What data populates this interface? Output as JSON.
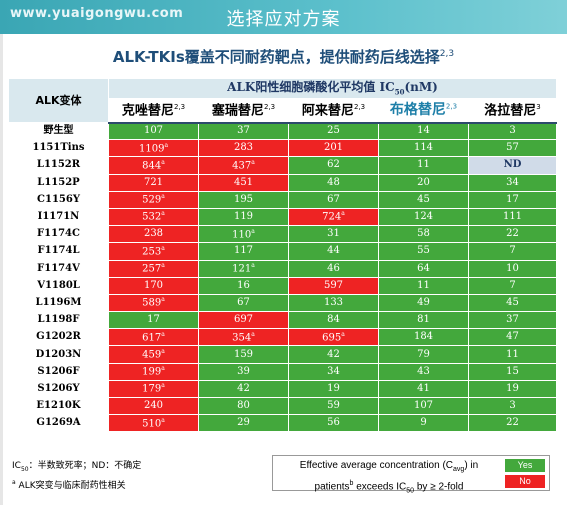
{
  "watermark": "www.yuaigongwu.com",
  "slide_title": "选择应对方案",
  "subtitle": {
    "text": "ALK-TKIs覆盖不同耐药靶点，提供耐药后线选择",
    "refs": "2,3"
  },
  "table": {
    "ic50_header": {
      "prefix": "ALK阳性细胞磷酸化平均值 IC",
      "sub": "50",
      "suffix": "(nM)"
    },
    "variant_header": "ALK变体",
    "drugs": [
      {
        "name": "克唑替尼",
        "refs": "2,3"
      },
      {
        "name": "塞瑞替尼",
        "refs": "2,3"
      },
      {
        "name": "阿来替尼",
        "refs": "2,3"
      },
      {
        "name": "布格替尼",
        "refs": "2,3"
      },
      {
        "name": "洛拉替尼",
        "refs": "3"
      }
    ],
    "rows": [
      {
        "variant": "野生型",
        "cells": [
          {
            "v": "107",
            "c": "green",
            "m": ""
          },
          {
            "v": "37",
            "c": "green",
            "m": ""
          },
          {
            "v": "25",
            "c": "green",
            "m": ""
          },
          {
            "v": "14",
            "c": "green",
            "m": ""
          },
          {
            "v": "3",
            "c": "green",
            "m": ""
          }
        ]
      },
      {
        "variant": "1151Tins",
        "cells": [
          {
            "v": "1109",
            "c": "red",
            "m": "a"
          },
          {
            "v": "283",
            "c": "red",
            "m": ""
          },
          {
            "v": "201",
            "c": "red",
            "m": ""
          },
          {
            "v": "114",
            "c": "green",
            "m": ""
          },
          {
            "v": "57",
            "c": "green",
            "m": ""
          }
        ]
      },
      {
        "variant": "L1152R",
        "cells": [
          {
            "v": "844",
            "c": "red",
            "m": "a"
          },
          {
            "v": "437",
            "c": "red",
            "m": "a"
          },
          {
            "v": "62",
            "c": "green",
            "m": ""
          },
          {
            "v": "11",
            "c": "green",
            "m": ""
          },
          {
            "v": "ND",
            "c": "nd",
            "m": ""
          }
        ]
      },
      {
        "variant": "L1152P",
        "cells": [
          {
            "v": "721",
            "c": "red",
            "m": ""
          },
          {
            "v": "451",
            "c": "red",
            "m": ""
          },
          {
            "v": "48",
            "c": "green",
            "m": ""
          },
          {
            "v": "20",
            "c": "green",
            "m": ""
          },
          {
            "v": "34",
            "c": "green",
            "m": ""
          }
        ]
      },
      {
        "variant": "C1156Y",
        "cells": [
          {
            "v": "529",
            "c": "red",
            "m": "a"
          },
          {
            "v": "195",
            "c": "green",
            "m": ""
          },
          {
            "v": "67",
            "c": "green",
            "m": ""
          },
          {
            "v": "45",
            "c": "green",
            "m": ""
          },
          {
            "v": "17",
            "c": "green",
            "m": ""
          }
        ]
      },
      {
        "variant": "I1171N",
        "cells": [
          {
            "v": "532",
            "c": "red",
            "m": "a"
          },
          {
            "v": "119",
            "c": "green",
            "m": ""
          },
          {
            "v": "724",
            "c": "red",
            "m": "a"
          },
          {
            "v": "124",
            "c": "green",
            "m": ""
          },
          {
            "v": "111",
            "c": "green",
            "m": ""
          }
        ]
      },
      {
        "variant": "F1174C",
        "cells": [
          {
            "v": "238",
            "c": "red",
            "m": ""
          },
          {
            "v": "110",
            "c": "green",
            "m": "a"
          },
          {
            "v": "31",
            "c": "green",
            "m": ""
          },
          {
            "v": "58",
            "c": "green",
            "m": ""
          },
          {
            "v": "22",
            "c": "green",
            "m": ""
          }
        ]
      },
      {
        "variant": "F1174L",
        "cells": [
          {
            "v": "253",
            "c": "red",
            "m": "a"
          },
          {
            "v": "117",
            "c": "green",
            "m": ""
          },
          {
            "v": "44",
            "c": "green",
            "m": ""
          },
          {
            "v": "55",
            "c": "green",
            "m": ""
          },
          {
            "v": "7",
            "c": "green",
            "m": ""
          }
        ]
      },
      {
        "variant": "F1174V",
        "cells": [
          {
            "v": "257",
            "c": "red",
            "m": "a"
          },
          {
            "v": "121",
            "c": "green",
            "m": "a"
          },
          {
            "v": "46",
            "c": "green",
            "m": ""
          },
          {
            "v": "64",
            "c": "green",
            "m": ""
          },
          {
            "v": "10",
            "c": "green",
            "m": ""
          }
        ]
      },
      {
        "variant": "V1180L",
        "cells": [
          {
            "v": "170",
            "c": "red",
            "m": ""
          },
          {
            "v": "16",
            "c": "green",
            "m": ""
          },
          {
            "v": "597",
            "c": "red",
            "m": ""
          },
          {
            "v": "11",
            "c": "green",
            "m": ""
          },
          {
            "v": "7",
            "c": "green",
            "m": ""
          }
        ]
      },
      {
        "variant": "L1196M",
        "cells": [
          {
            "v": "589",
            "c": "red",
            "m": "a"
          },
          {
            "v": "67",
            "c": "green",
            "m": ""
          },
          {
            "v": "133",
            "c": "green",
            "m": ""
          },
          {
            "v": "49",
            "c": "green",
            "m": ""
          },
          {
            "v": "45",
            "c": "green",
            "m": ""
          }
        ]
      },
      {
        "variant": "L1198F",
        "cells": [
          {
            "v": "17",
            "c": "green",
            "m": ""
          },
          {
            "v": "697",
            "c": "red",
            "m": ""
          },
          {
            "v": "84",
            "c": "green",
            "m": ""
          },
          {
            "v": "81",
            "c": "green",
            "m": ""
          },
          {
            "v": "37",
            "c": "green",
            "m": ""
          }
        ]
      },
      {
        "variant": "G1202R",
        "cells": [
          {
            "v": "617",
            "c": "red",
            "m": "a"
          },
          {
            "v": "354",
            "c": "red",
            "m": "a"
          },
          {
            "v": "695",
            "c": "red",
            "m": "a"
          },
          {
            "v": "184",
            "c": "green",
            "m": ""
          },
          {
            "v": "47",
            "c": "green",
            "m": ""
          }
        ]
      },
      {
        "variant": "D1203N",
        "cells": [
          {
            "v": "459",
            "c": "red",
            "m": "a"
          },
          {
            "v": "159",
            "c": "green",
            "m": ""
          },
          {
            "v": "42",
            "c": "green",
            "m": ""
          },
          {
            "v": "79",
            "c": "green",
            "m": ""
          },
          {
            "v": "11",
            "c": "green",
            "m": ""
          }
        ]
      },
      {
        "variant": "S1206F",
        "cells": [
          {
            "v": "199",
            "c": "red",
            "m": "a"
          },
          {
            "v": "39",
            "c": "green",
            "m": ""
          },
          {
            "v": "34",
            "c": "green",
            "m": ""
          },
          {
            "v": "43",
            "c": "green",
            "m": ""
          },
          {
            "v": "15",
            "c": "green",
            "m": ""
          }
        ]
      },
      {
        "variant": "S1206Y",
        "cells": [
          {
            "v": "179",
            "c": "red",
            "m": "a"
          },
          {
            "v": "42",
            "c": "green",
            "m": ""
          },
          {
            "v": "19",
            "c": "green",
            "m": ""
          },
          {
            "v": "41",
            "c": "green",
            "m": ""
          },
          {
            "v": "19",
            "c": "green",
            "m": ""
          }
        ]
      },
      {
        "variant": "E1210K",
        "cells": [
          {
            "v": "240",
            "c": "red",
            "m": ""
          },
          {
            "v": "80",
            "c": "green",
            "m": ""
          },
          {
            "v": "59",
            "c": "green",
            "m": ""
          },
          {
            "v": "107",
            "c": "green",
            "m": ""
          },
          {
            "v": "3",
            "c": "green",
            "m": ""
          }
        ]
      },
      {
        "variant": "G1269A",
        "cells": [
          {
            "v": "510",
            "c": "red",
            "m": "a"
          },
          {
            "v": "29",
            "c": "green",
            "m": ""
          },
          {
            "v": "56",
            "c": "green",
            "m": ""
          },
          {
            "v": "9",
            "c": "green",
            "m": ""
          },
          {
            "v": "22",
            "c": "green",
            "m": ""
          }
        ]
      }
    ]
  },
  "footnotes": {
    "ic50": {
      "prefix": "IC",
      "sub": "50",
      "text": "：半数致死率；ND：不确定"
    },
    "marker": {
      "sup": "a",
      "text": " ALK突变与临床耐药性相关"
    }
  },
  "legend": {
    "line1_prefix": "Effective average concentration (C",
    "line1_sub": "avg",
    "line1_suffix": ") in",
    "line2_prefix": "patients",
    "line2_sup": "b",
    "line2_mid": " exceeds IC",
    "line2_sub": "50",
    "line2_suffix": " by ≥ 2-fold",
    "yes": "Yes",
    "no": "No"
  },
  "colors": {
    "green": "#43a83c",
    "red": "#ee2323",
    "nd": "#d0dbe8",
    "header_bg": "#d9e8ee",
    "title_bar": "#3aa6b4"
  }
}
